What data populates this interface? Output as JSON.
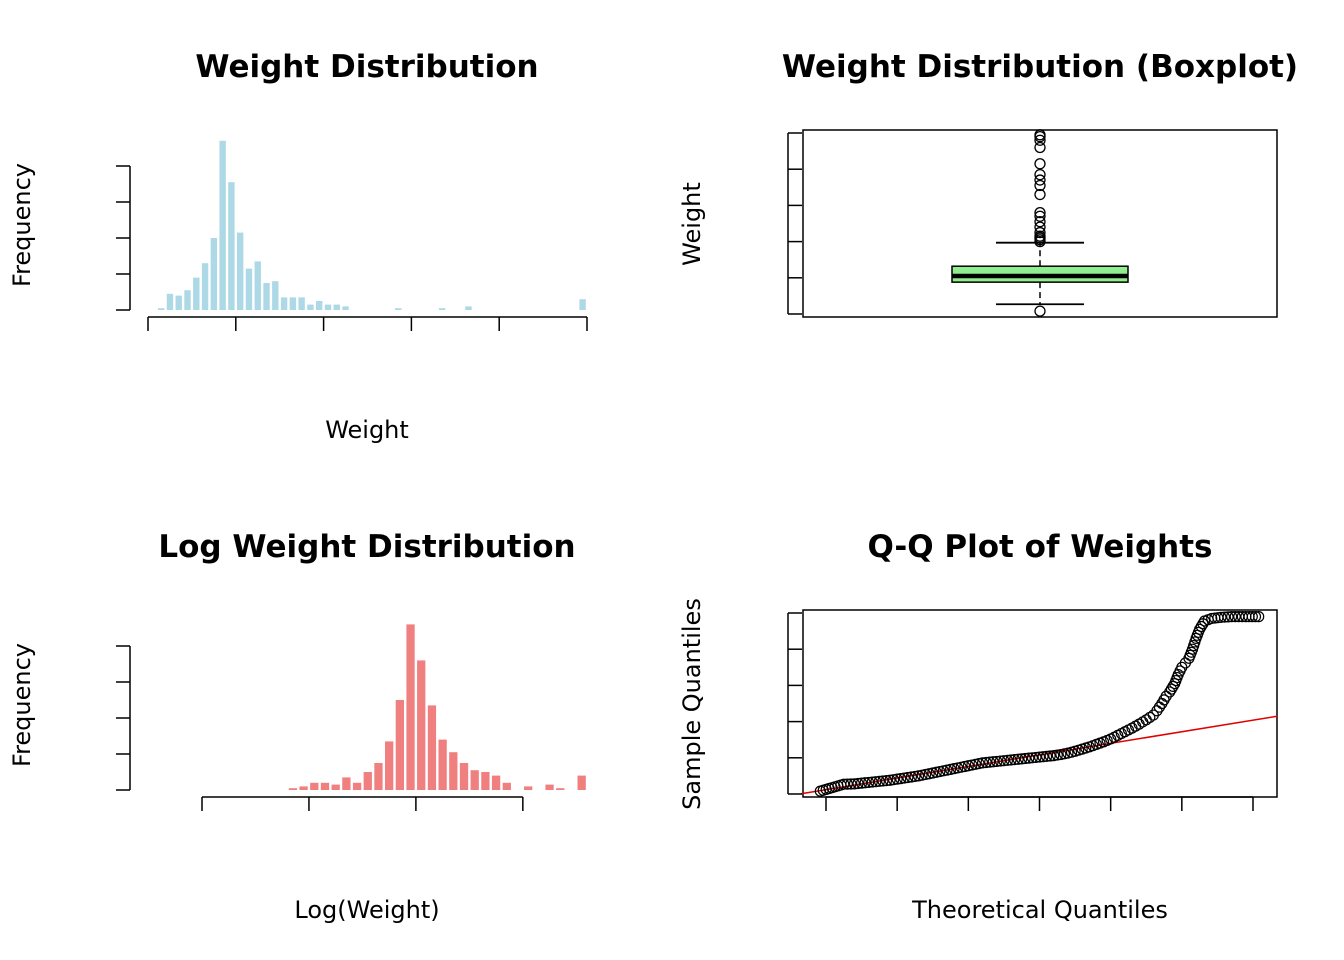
{
  "colors": {
    "hist": "#add8e6",
    "log_hist": "#f08080",
    "box_fill": "#90ee90",
    "qq_line": "#e00000"
  },
  "chart_data": [
    {
      "type": "bar",
      "title": "Weight Distribution",
      "xlabel": "Weight",
      "ylabel": "Frequency",
      "x_ticks": [
        "0",
        "1",
        "2",
        "3",
        "4",
        "5"
      ],
      "y_ticks": [
        "0",
        "40",
        "80"
      ],
      "xlim": [
        0,
        5
      ],
      "ylim": [
        0,
        95
      ],
      "bin_width": 0.1,
      "bin_starts": [
        0.1,
        0.2,
        0.3,
        0.4,
        0.5,
        0.6,
        0.7,
        0.8,
        0.9,
        1.0,
        1.1,
        1.2,
        1.3,
        1.4,
        1.5,
        1.6,
        1.7,
        1.8,
        1.9,
        2.0,
        2.1,
        2.2,
        2.8,
        3.3,
        3.6,
        4.9
      ],
      "values": [
        1,
        9,
        8,
        11,
        18,
        26,
        40,
        94,
        71,
        43,
        23,
        27,
        15,
        16,
        7,
        7,
        7,
        3,
        5,
        3,
        3,
        2,
        1,
        1,
        2,
        6
      ]
    },
    {
      "type": "boxplot",
      "title": "Weight Distribution (Boxplot)",
      "ylabel": "Weight",
      "y_ticks": [
        "0",
        "2",
        "4"
      ],
      "ylim": [
        0,
        5
      ],
      "lower_whisker": 0.27,
      "q1": 0.88,
      "median": 1.05,
      "q3": 1.32,
      "upper_whisker": 1.97,
      "outliers": [
        0.08,
        2.0,
        2.05,
        2.1,
        2.15,
        2.25,
        2.4,
        2.55,
        2.7,
        2.8,
        3.3,
        3.55,
        3.7,
        3.85,
        4.15,
        4.6,
        4.8,
        4.9,
        4.95
      ]
    },
    {
      "type": "bar",
      "title": "Log Weight Distribution",
      "xlabel": "Log(Weight)",
      "ylabel": "Frequency",
      "x_ticks": [
        "-2",
        "-1",
        "0",
        "1"
      ],
      "y_ticks": [
        "0",
        "40",
        "80"
      ],
      "xlim": [
        -2,
        1.6
      ],
      "ylim": [
        0,
        95
      ],
      "bin_width": 0.1,
      "bin_starts": [
        -1.2,
        -1.1,
        -1.0,
        -0.9,
        -0.8,
        -0.7,
        -0.6,
        -0.5,
        -0.4,
        -0.3,
        -0.2,
        -0.1,
        0.0,
        0.1,
        0.2,
        0.3,
        0.4,
        0.5,
        0.6,
        0.7,
        0.8,
        1.0,
        1.2,
        1.3,
        1.5
      ],
      "values": [
        1,
        2,
        4,
        4,
        3,
        7,
        4,
        10,
        15,
        27,
        50,
        92,
        72,
        47,
        28,
        21,
        15,
        11,
        10,
        8,
        4,
        2,
        3,
        1,
        8
      ]
    },
    {
      "type": "scatter",
      "title": "Q-Q Plot of Weights",
      "xlabel": "Theoretical Quantiles",
      "ylabel": "Sample Quantiles",
      "x_ticks": [
        "-3",
        "-2",
        "-1",
        "0",
        "1",
        "2",
        "3"
      ],
      "y_ticks": [
        "0",
        "2",
        "4"
      ],
      "xlim": [
        -3.35,
        3.35
      ],
      "ylim": [
        -0.1,
        5.05
      ],
      "reference_line": {
        "intercept": 1.08,
        "slope": 0.32
      },
      "points": [
        [
          -3.08,
          0.08
        ],
        [
          -2.75,
          0.27
        ],
        [
          -2.6,
          0.28
        ],
        [
          -2.5,
          0.3
        ],
        [
          -2.4,
          0.32
        ],
        [
          -2.3,
          0.34
        ],
        [
          -2.2,
          0.36
        ],
        [
          -2.1,
          0.38
        ],
        [
          -2.0,
          0.41
        ],
        [
          -1.9,
          0.44
        ],
        [
          -1.8,
          0.47
        ],
        [
          -1.7,
          0.5
        ],
        [
          -1.6,
          0.54
        ],
        [
          -1.5,
          0.58
        ],
        [
          -1.4,
          0.62
        ],
        [
          -1.3,
          0.66
        ],
        [
          -1.2,
          0.7
        ],
        [
          -1.1,
          0.74
        ],
        [
          -1.0,
          0.78
        ],
        [
          -0.9,
          0.82
        ],
        [
          -0.8,
          0.86
        ],
        [
          -0.7,
          0.88
        ],
        [
          -0.6,
          0.9
        ],
        [
          -0.5,
          0.92
        ],
        [
          -0.4,
          0.94
        ],
        [
          -0.3,
          0.96
        ],
        [
          -0.2,
          0.98
        ],
        [
          -0.1,
          1.0
        ],
        [
          0.0,
          1.02
        ],
        [
          0.1,
          1.04
        ],
        [
          0.2,
          1.06
        ],
        [
          0.3,
          1.09
        ],
        [
          0.4,
          1.13
        ],
        [
          0.5,
          1.18
        ],
        [
          0.6,
          1.24
        ],
        [
          0.7,
          1.3
        ],
        [
          0.8,
          1.37
        ],
        [
          0.9,
          1.44
        ],
        [
          1.0,
          1.52
        ],
        [
          1.1,
          1.62
        ],
        [
          1.2,
          1.72
        ],
        [
          1.3,
          1.82
        ],
        [
          1.4,
          1.93
        ],
        [
          1.5,
          2.05
        ],
        [
          1.6,
          2.18
        ],
        [
          1.65,
          2.3
        ],
        [
          1.72,
          2.5
        ],
        [
          1.78,
          2.7
        ],
        [
          1.83,
          2.82
        ],
        [
          1.9,
          3.05
        ],
        [
          1.95,
          3.3
        ],
        [
          2.0,
          3.5
        ],
        [
          2.05,
          3.62
        ],
        [
          2.1,
          3.75
        ],
        [
          2.15,
          4.0
        ],
        [
          2.2,
          4.3
        ],
        [
          2.25,
          4.55
        ],
        [
          2.32,
          4.78
        ],
        [
          2.42,
          4.85
        ],
        [
          2.55,
          4.88
        ],
        [
          2.7,
          4.9
        ],
        [
          2.9,
          4.9
        ],
        [
          3.08,
          4.9
        ]
      ]
    }
  ]
}
